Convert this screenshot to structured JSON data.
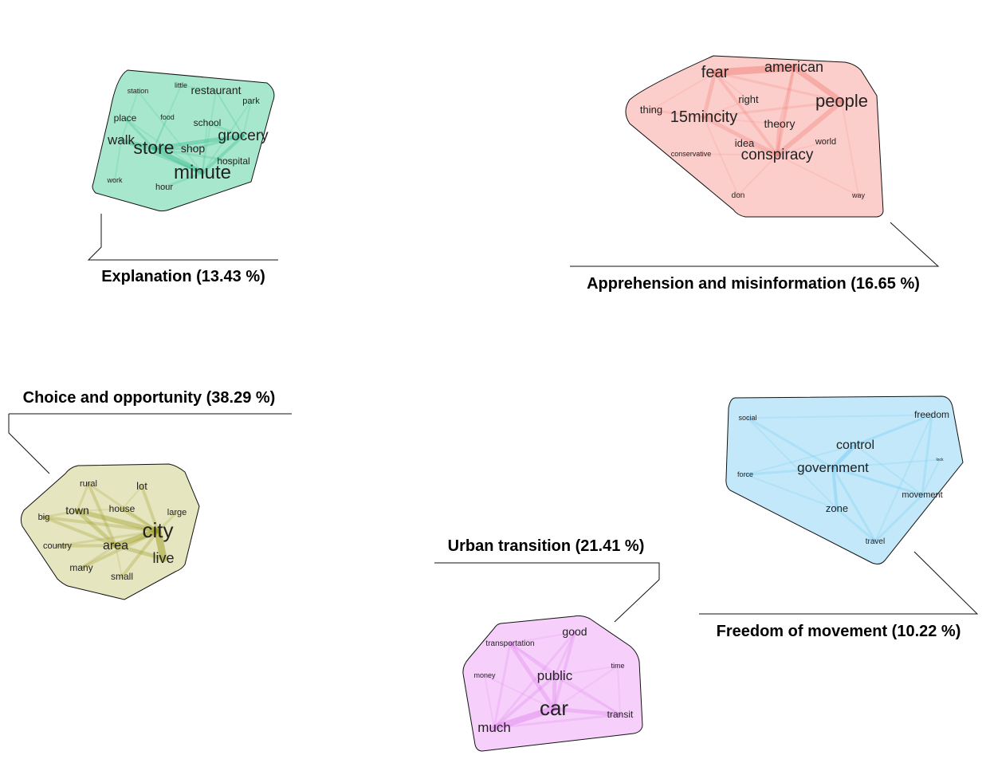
{
  "clusters": [
    {
      "id": "explanation",
      "title": "Explanation (13.43 %)",
      "fill": "#5fd3a6",
      "edge": "#2eb98a",
      "words": [
        {
          "text": "station"
        },
        {
          "text": "little"
        },
        {
          "text": "restaurant"
        },
        {
          "text": "park"
        },
        {
          "text": "place"
        },
        {
          "text": "food"
        },
        {
          "text": "school"
        },
        {
          "text": "walk"
        },
        {
          "text": "store"
        },
        {
          "text": "shop"
        },
        {
          "text": "grocery"
        },
        {
          "text": "hospital"
        },
        {
          "text": "minute"
        },
        {
          "text": "work"
        },
        {
          "text": "hour"
        }
      ]
    },
    {
      "id": "apprehension",
      "title": "Apprehension and misinformation (16.65 %)",
      "fill": "#f9a6a0",
      "edge": "#f07f78",
      "words": [
        {
          "text": "fear"
        },
        {
          "text": "american"
        },
        {
          "text": "thing"
        },
        {
          "text": "right"
        },
        {
          "text": "people"
        },
        {
          "text": "15mincity"
        },
        {
          "text": "theory"
        },
        {
          "text": "idea"
        },
        {
          "text": "world"
        },
        {
          "text": "conservative"
        },
        {
          "text": "conspiracy"
        },
        {
          "text": "don"
        },
        {
          "text": "way"
        }
      ]
    },
    {
      "id": "choice",
      "title": "Choice and opportunity (38.29 %)",
      "fill": "#cfd08a",
      "edge": "#9c9a1e",
      "words": [
        {
          "text": "rural"
        },
        {
          "text": "lot"
        },
        {
          "text": "big"
        },
        {
          "text": "town"
        },
        {
          "text": "house"
        },
        {
          "text": "large"
        },
        {
          "text": "city"
        },
        {
          "text": "country"
        },
        {
          "text": "area"
        },
        {
          "text": "live"
        },
        {
          "text": "many"
        },
        {
          "text": "small"
        }
      ]
    },
    {
      "id": "freedom",
      "title": "Freedom of movement (10.22 %)",
      "fill": "#8fd6f5",
      "edge": "#5ac4ef",
      "words": [
        {
          "text": "social"
        },
        {
          "text": "freedom"
        },
        {
          "text": "control"
        },
        {
          "text": "government"
        },
        {
          "text": "lock"
        },
        {
          "text": "force"
        },
        {
          "text": "movement"
        },
        {
          "text": "zone"
        },
        {
          "text": "travel"
        }
      ]
    },
    {
      "id": "urban",
      "title": "Urban transition (21.41 %)",
      "fill": "#eeaaf5",
      "edge": "#e07cf0",
      "words": [
        {
          "text": "good"
        },
        {
          "text": "transportation"
        },
        {
          "text": "time"
        },
        {
          "text": "money"
        },
        {
          "text": "public"
        },
        {
          "text": "car"
        },
        {
          "text": "transit"
        },
        {
          "text": "much"
        }
      ]
    }
  ]
}
